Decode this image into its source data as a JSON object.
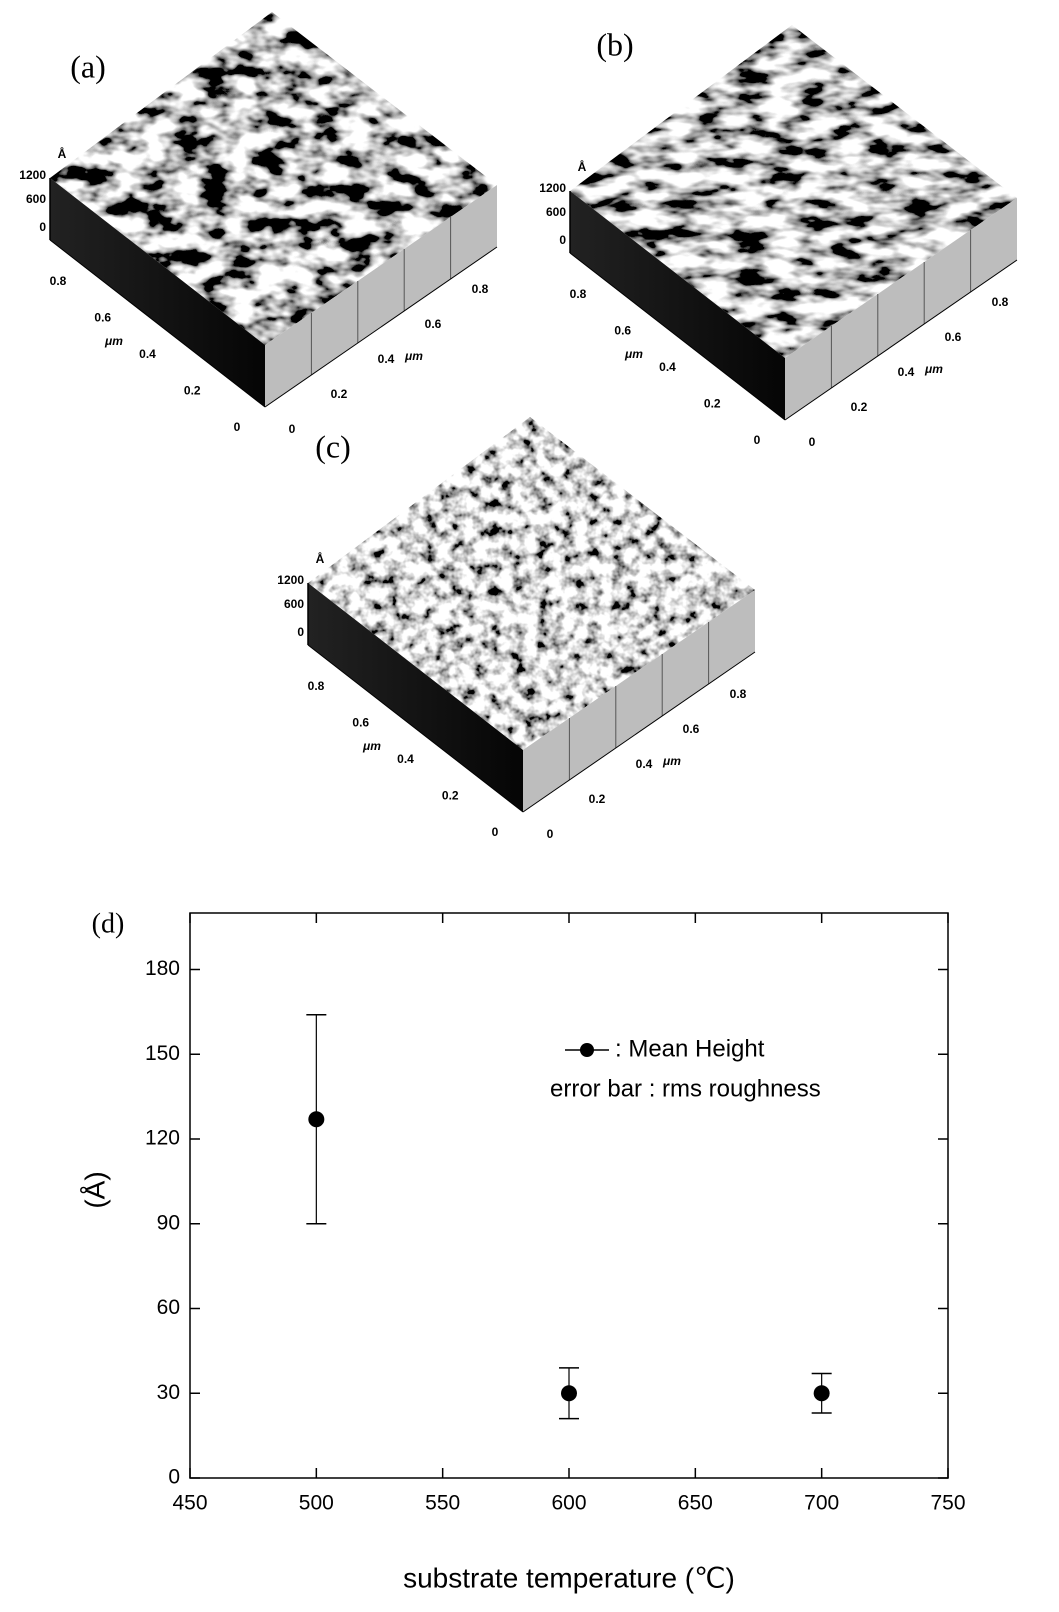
{
  "panels": [
    {
      "label": "(a)",
      "z_unit": "Å",
      "z_ticks": [
        "1200",
        "600",
        "0"
      ],
      "left_ticks": [
        "0.8",
        "0.6",
        "0.4",
        "0.2",
        "0"
      ],
      "left_unit": "μm",
      "right_ticks": [
        "0",
        "0.2",
        "0.4",
        "0.6",
        "0.8"
      ],
      "right_unit": "μm"
    },
    {
      "label": "(b)",
      "z_unit": "Å",
      "z_ticks": [
        "1200",
        "600",
        "0"
      ],
      "left_ticks": [
        "0.8",
        "0.6",
        "0.4",
        "0.2",
        "0"
      ],
      "left_unit": "μm",
      "right_ticks": [
        "0",
        "0.2",
        "0.4",
        "0.6",
        "0.8"
      ],
      "right_unit": "μm"
    },
    {
      "label": "(c)",
      "z_unit": "Å",
      "z_ticks": [
        "1200",
        "600",
        "0"
      ],
      "left_ticks": [
        "0.8",
        "0.6",
        "0.4",
        "0.2",
        "0"
      ],
      "left_unit": "μm",
      "right_ticks": [
        "0",
        "0.2",
        "0.4",
        "0.6",
        "0.8"
      ],
      "right_unit": "μm"
    }
  ],
  "chart_data": {
    "type": "scatter",
    "panel_label": "(d)",
    "x_label": "substrate temperature (℃)",
    "y_label": "(Å)",
    "x": [
      500,
      600,
      700
    ],
    "series": [
      {
        "name": ": Mean Height",
        "color": "#000000",
        "values": [
          127,
          30,
          30
        ],
        "errors": [
          37,
          9,
          7
        ]
      }
    ],
    "annotation": "error bar : rms roughness",
    "xlim": [
      450,
      750
    ],
    "xticks": [
      450,
      500,
      550,
      600,
      650,
      700,
      750
    ],
    "ylim": [
      0,
      200
    ],
    "yticks": [
      0,
      30,
      60,
      90,
      120,
      150,
      180
    ],
    "legend": "upper right"
  }
}
